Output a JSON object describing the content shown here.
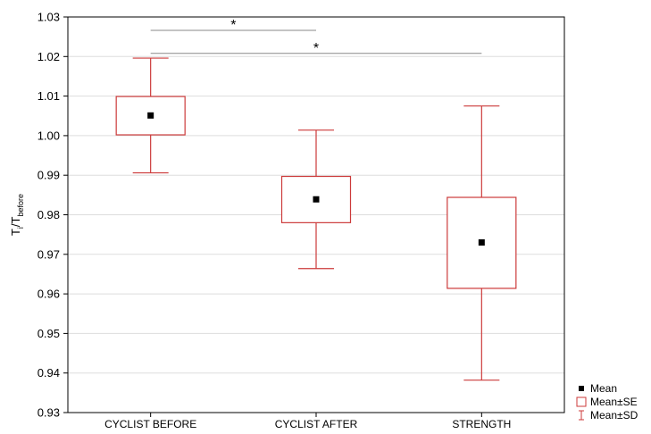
{
  "chart_data": {
    "type": "box",
    "categories": [
      "CYCLIST BEFORE",
      "CYCLIST AFTER",
      "STRENGTH"
    ],
    "series": [
      {
        "stats": [
          {
            "mean": 1.0051,
            "se_low": 1.0002,
            "se_high": 1.0099,
            "sd_low": 0.9906,
            "sd_high": 1.0196
          },
          {
            "mean": 0.9839,
            "se_low": 0.978,
            "se_high": 0.9897,
            "sd_low": 0.9664,
            "sd_high": 1.0014
          },
          {
            "mean": 0.973,
            "se_low": 0.9614,
            "se_high": 0.9844,
            "sd_low": 0.9382,
            "sd_high": 1.0075
          }
        ]
      }
    ],
    "ylabel": {
      "main": "T",
      "sub1": "i",
      "mid": "/T",
      "sub2": "before"
    },
    "ylim": [
      0.93,
      1.03
    ],
    "yticks": [
      "0.93",
      "0.94",
      "0.95",
      "0.96",
      "0.97",
      "0.98",
      "0.99",
      "1.00",
      "1.01",
      "1.02",
      "1.03"
    ],
    "grid": true,
    "legend": {
      "position": "bottom-right",
      "entries": [
        "Mean",
        "Mean±SE",
        "Mean±SD"
      ]
    },
    "annotations": [
      {
        "from": "CYCLIST BEFORE",
        "to": "CYCLIST AFTER",
        "y": 1.0266,
        "label": "*"
      },
      {
        "from": "CYCLIST BEFORE",
        "to": "STRENGTH",
        "y": 1.0208,
        "label": "*"
      }
    ],
    "colors": {
      "box": "#cc3a3a",
      "mean": "#000000",
      "grid": "#dddddd",
      "axis": "#000000",
      "annotation": "#888888"
    }
  }
}
